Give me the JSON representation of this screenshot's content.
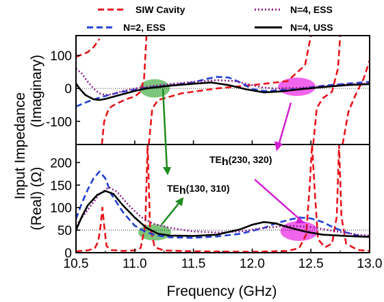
{
  "chart_data": {
    "type": "line",
    "xlabel": "Frequency (GHz)",
    "ylabel_line1": "Input Impedance",
    "ylabel_top": "(Imaginary)",
    "ylabel_bottom": "(Real) (Ω)",
    "xlim": [
      10.5,
      13.0
    ],
    "xticks": [
      "10.5",
      "11.0",
      "11.5",
      "12.0",
      "12.5",
      "13.0"
    ],
    "top_panel": {
      "ylim": [
        -170,
        160
      ],
      "yticks": [
        "100",
        "0",
        "-100"
      ],
      "reference_line": 0
    },
    "bottom_panel": {
      "ylim": [
        0,
        240
      ],
      "yticks": [
        "200",
        "150",
        "100",
        "50",
        "0"
      ],
      "reference_line": 50
    },
    "legend_position": "top",
    "series": [
      {
        "name": "SIW Cavity",
        "color": "#e8141b",
        "style": "dashed",
        "imag_segments": [
          [
            [
              10.5,
              95
            ],
            [
              10.6,
              110
            ],
            [
              10.65,
              125
            ],
            [
              10.7,
              150
            ]
          ],
          [
            [
              10.72,
              -170
            ],
            [
              10.74,
              -100
            ],
            [
              10.78,
              -60
            ],
            [
              10.85,
              -45
            ],
            [
              10.95,
              -30
            ],
            [
              11.0,
              -25
            ],
            [
              11.05,
              -10
            ],
            [
              11.08,
              30
            ],
            [
              11.1,
              160
            ]
          ],
          [
            [
              11.12,
              -170
            ],
            [
              11.15,
              -60
            ],
            [
              11.2,
              -35
            ],
            [
              11.4,
              -15
            ],
            [
              11.7,
              0
            ],
            [
              12.0,
              10
            ],
            [
              12.3,
              22
            ],
            [
              12.45,
              70
            ],
            [
              12.5,
              160
            ]
          ],
          [
            [
              12.52,
              -170
            ],
            [
              12.55,
              -60
            ],
            [
              12.6,
              -30
            ],
            [
              12.68,
              -10
            ],
            [
              12.73,
              60
            ],
            [
              12.75,
              160
            ]
          ],
          [
            [
              12.77,
              -170
            ],
            [
              12.82,
              -70
            ],
            [
              12.88,
              -20
            ],
            [
              12.95,
              30
            ],
            [
              13.0,
              85
            ]
          ]
        ],
        "real_points": [
          [
            10.5,
            3
          ],
          [
            10.6,
            5
          ],
          [
            10.66,
            10
          ],
          [
            10.69,
            25
          ],
          [
            10.71,
            60
          ],
          [
            10.725,
            100
          ],
          [
            10.74,
            60
          ],
          [
            10.76,
            15
          ],
          [
            10.8,
            6
          ],
          [
            10.9,
            4
          ],
          [
            11.0,
            5
          ],
          [
            11.05,
            10
          ],
          [
            11.09,
            60
          ],
          [
            11.11,
            240
          ],
          [
            11.13,
            60
          ],
          [
            11.17,
            12
          ],
          [
            11.25,
            5
          ],
          [
            11.5,
            3
          ],
          [
            12.0,
            2
          ],
          [
            12.3,
            4
          ],
          [
            12.4,
            10
          ],
          [
            12.46,
            40
          ],
          [
            12.49,
            150
          ],
          [
            12.51,
            240
          ],
          [
            12.53,
            150
          ],
          [
            12.56,
            30
          ],
          [
            12.62,
            12
          ],
          [
            12.68,
            20
          ],
          [
            12.72,
            80
          ],
          [
            12.74,
            240
          ],
          [
            12.76,
            80
          ],
          [
            12.8,
            20
          ],
          [
            12.9,
            6
          ],
          [
            13.0,
            4
          ]
        ]
      },
      {
        "name": "N=2, ESS",
        "color": "#1f3fd6",
        "style": "dashed",
        "imag_points": [
          [
            10.5,
            -55
          ],
          [
            10.6,
            -40
          ],
          [
            10.7,
            -28
          ],
          [
            10.8,
            -18
          ],
          [
            10.9,
            -10
          ],
          [
            11.0,
            -4
          ],
          [
            11.1,
            2
          ],
          [
            11.3,
            10
          ],
          [
            11.5,
            18
          ],
          [
            11.6,
            28
          ],
          [
            11.7,
            35
          ],
          [
            11.8,
            33
          ],
          [
            11.9,
            18
          ],
          [
            12.0,
            -2
          ],
          [
            12.1,
            -8
          ],
          [
            12.2,
            -6
          ],
          [
            12.3,
            -4
          ],
          [
            12.4,
            -2
          ],
          [
            12.6,
            8
          ],
          [
            12.8,
            14
          ],
          [
            13.0,
            20
          ]
        ],
        "real_points": [
          [
            10.5,
            75
          ],
          [
            10.55,
            110
          ],
          [
            10.6,
            140
          ],
          [
            10.65,
            165
          ],
          [
            10.7,
            180
          ],
          [
            10.75,
            165
          ],
          [
            10.8,
            130
          ],
          [
            10.9,
            90
          ],
          [
            11.0,
            60
          ],
          [
            11.1,
            45
          ],
          [
            11.2,
            38
          ],
          [
            11.3,
            34
          ],
          [
            11.5,
            33
          ],
          [
            11.7,
            36
          ],
          [
            11.9,
            42
          ],
          [
            12.1,
            55
          ],
          [
            12.2,
            65
          ],
          [
            12.3,
            72
          ],
          [
            12.4,
            78
          ],
          [
            12.5,
            76
          ],
          [
            12.6,
            68
          ],
          [
            12.7,
            55
          ],
          [
            12.8,
            45
          ],
          [
            12.9,
            38
          ],
          [
            13.0,
            35
          ]
        ]
      },
      {
        "name": "N=4, ESS",
        "color": "#8e1f8e",
        "style": "dotted",
        "imag_points": [
          [
            10.5,
            60
          ],
          [
            10.55,
            45
          ],
          [
            10.6,
            20
          ],
          [
            10.65,
            0
          ],
          [
            10.7,
            -15
          ],
          [
            10.75,
            -20
          ],
          [
            10.8,
            -18
          ],
          [
            10.9,
            -8
          ],
          [
            11.0,
            0
          ],
          [
            11.2,
            10
          ],
          [
            11.5,
            20
          ],
          [
            11.7,
            25
          ],
          [
            11.85,
            22
          ],
          [
            12.0,
            10
          ],
          [
            12.1,
            2
          ],
          [
            12.2,
            0
          ],
          [
            12.4,
            2
          ],
          [
            12.6,
            6
          ],
          [
            12.8,
            12
          ],
          [
            13.0,
            15
          ]
        ],
        "real_points": [
          [
            10.5,
            60
          ],
          [
            10.6,
            95
          ],
          [
            10.7,
            130
          ],
          [
            10.78,
            145
          ],
          [
            10.85,
            135
          ],
          [
            10.95,
            105
          ],
          [
            11.05,
            80
          ],
          [
            11.15,
            65
          ],
          [
            11.3,
            55
          ],
          [
            11.5,
            47
          ],
          [
            11.7,
            45
          ],
          [
            11.9,
            47
          ],
          [
            12.1,
            55
          ],
          [
            12.3,
            60
          ],
          [
            12.5,
            57
          ],
          [
            12.7,
            48
          ],
          [
            12.9,
            40
          ],
          [
            13.0,
            38
          ]
        ]
      },
      {
        "name": "N=4, USS",
        "color": "#000000",
        "style": "solid",
        "imag_points": [
          [
            10.5,
            15
          ],
          [
            10.53,
            0
          ],
          [
            10.58,
            -20
          ],
          [
            10.65,
            -33
          ],
          [
            10.7,
            -35
          ],
          [
            10.75,
            -32
          ],
          [
            10.85,
            -22
          ],
          [
            11.0,
            -8
          ],
          [
            11.1,
            0
          ],
          [
            11.3,
            8
          ],
          [
            11.5,
            14
          ],
          [
            11.65,
            18
          ],
          [
            11.8,
            10
          ],
          [
            11.95,
            -3
          ],
          [
            12.1,
            -12
          ],
          [
            12.25,
            -9
          ],
          [
            12.4,
            -3
          ],
          [
            12.6,
            4
          ],
          [
            12.8,
            10
          ],
          [
            13.0,
            13
          ]
        ],
        "real_points": [
          [
            10.5,
            50
          ],
          [
            10.55,
            80
          ],
          [
            10.6,
            105
          ],
          [
            10.68,
            128
          ],
          [
            10.75,
            137
          ],
          [
            10.82,
            130
          ],
          [
            10.9,
            105
          ],
          [
            11.0,
            78
          ],
          [
            11.1,
            55
          ],
          [
            11.2,
            42
          ],
          [
            11.3,
            38
          ],
          [
            11.5,
            37
          ],
          [
            11.7,
            40
          ],
          [
            11.9,
            52
          ],
          [
            12.0,
            62
          ],
          [
            12.1,
            68
          ],
          [
            12.2,
            65
          ],
          [
            12.3,
            57
          ],
          [
            12.45,
            47
          ],
          [
            12.6,
            40
          ],
          [
            12.8,
            37
          ],
          [
            13.0,
            35
          ]
        ]
      }
    ],
    "highlights": [
      {
        "panel": "top",
        "cx": 11.17,
        "cy": 0,
        "rx": 0.13,
        "ry": 28,
        "color": "#5cb85c"
      },
      {
        "panel": "bottom",
        "cx": 11.17,
        "cy": 45,
        "rx": 0.14,
        "ry": 18,
        "color": "#5cb85c"
      },
      {
        "panel": "top",
        "cx": 12.38,
        "cy": 5,
        "rx": 0.16,
        "ry": 28,
        "color": "#ee3ee8"
      },
      {
        "panel": "bottom",
        "cx": 12.4,
        "cy": 48,
        "rx": 0.16,
        "ry": 22,
        "color": "#ee3ee8"
      }
    ],
    "annotations": [
      {
        "text": "TE",
        "sub": "h",
        "rest": "(130, 310)",
        "color": "#1d8a1d"
      },
      {
        "text": "TE",
        "sub": "h",
        "rest": "(230, 320)",
        "color": "#d21ed2"
      }
    ]
  }
}
